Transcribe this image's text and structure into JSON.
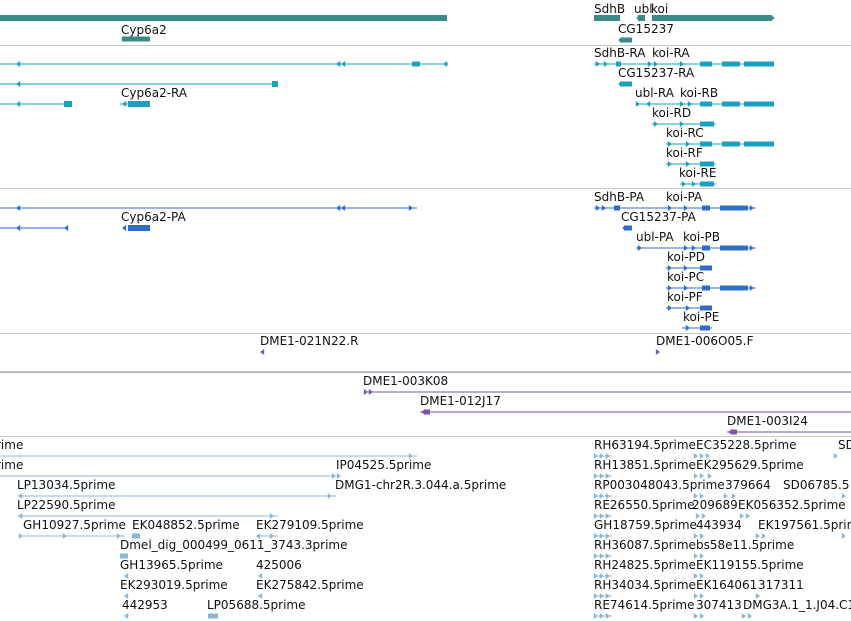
{
  "colors": {
    "gene": "#3a8a88",
    "transcript": "#1aa0c0",
    "protein": "#2e6cc8",
    "clone": "#7a55a8",
    "est": "#88b8d8",
    "separator": "#c8c8c8"
  },
  "tracks": [
    {
      "id": "genes",
      "icon": "arrow",
      "labels": [
        "Cyp6a2",
        "SdhB",
        "ubl",
        "koi",
        "CG15237"
      ]
    },
    {
      "id": "transcripts",
      "icon": "arrow",
      "labels": [
        "SdhB-RA",
        "koi-RA",
        "CG15237-RA",
        "Cyp6a2-RA",
        "ubl-RA",
        "koi-RB",
        "koi-RD",
        "koi-RC",
        "koi-RF",
        "koi-RE"
      ]
    },
    {
      "id": "proteins",
      "icon": "arrow",
      "labels": [
        "SdhB-PA",
        "koi-PA",
        "Cyp6a2-PA",
        "CG15237-PA",
        "ubl-PA",
        "koi-PB",
        "koi-PD",
        "koi-PC",
        "koi-PF",
        "koi-PE"
      ]
    },
    {
      "id": "clones-a",
      "icon": "arrow",
      "labels": [
        "DME1-021N22.R",
        "DME1-006O05.F"
      ]
    },
    {
      "id": "clones-b",
      "icon": "arrow",
      "labels": [
        "DME1-003K08",
        "DME1-012J17",
        "DME1-003I24"
      ]
    },
    {
      "id": "ests",
      "icon": "arrow",
      "labels": [
        "rime",
        "rime",
        "IP04525.5prime",
        "LP13034.5prime",
        "DMG1-chr2R.3.044.a.5prime",
        "LP22590.5prime",
        "GH10927.5prime",
        "EK048852.5prime",
        "EK279109.5prime",
        "Dmel_dig_000499_0611_3743.3prime",
        "GH13965.5prime",
        "425006",
        "EK293019.5prime",
        "EK275842.5prime",
        "442953",
        "LP05688.5prime",
        "RH63194.5prime",
        "EC35228.5prime",
        "SD",
        "RH13851.5prime",
        "EK295629.5prime",
        "RP003048043.5prime",
        "379664",
        "SD06785.5",
        "RE26550.5prime",
        "209689",
        "EK056352.5prime",
        "GH18759.5prime",
        "443934",
        "EK197561.5prime",
        "RH36087.5prime",
        "bs58e11.5prime",
        "RH24825.5prime",
        "EK119155.5prime",
        "RH34034.5prime",
        "EK164061",
        "317311",
        "RE74614.5prime",
        "307413",
        "DMG3A.1_1.J04.C1"
      ]
    }
  ]
}
